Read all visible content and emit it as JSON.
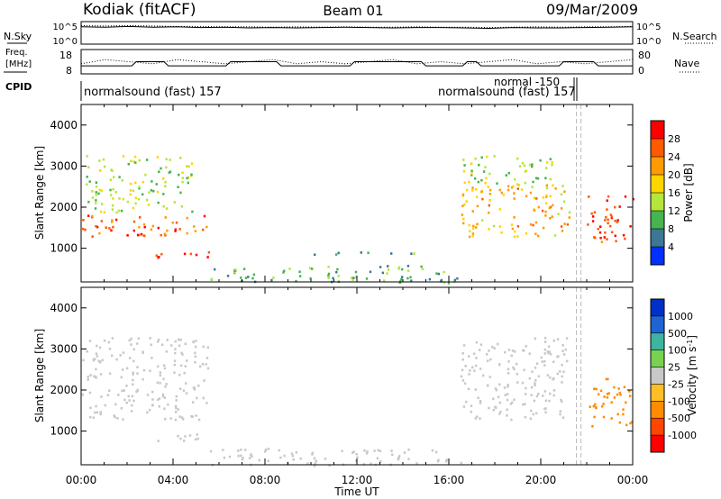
{
  "header": {
    "station": "Kodiak (fitACF)",
    "beam": "Beam 01",
    "date": "09/Mar/2009"
  },
  "strip_labels": {
    "nsky": "N.Sky",
    "nsearch": "N.Search",
    "freq_line1": "Freq.",
    "freq_line2": "[MHz]",
    "nave": "Nave",
    "cpid": "CPID"
  },
  "cpid_annotations": {
    "left": "normalsound (fast) 157",
    "right_upper": "normal -150",
    "right_lower": "normalsound (fast) 157"
  },
  "chart_data": [
    {
      "type": "line",
      "panel": "noise",
      "left_axis_ticks": [
        "10^5",
        "10^0"
      ],
      "right_axis_ticks": [
        "10^5",
        "10^0"
      ],
      "series": [
        {
          "name": "N.Sky",
          "style": "solid",
          "values": [
            4.1,
            4.0,
            4.2,
            4.0,
            4.1,
            3.9,
            4.0,
            3.8,
            3.9,
            3.8,
            3.9,
            4.0,
            3.9,
            3.8,
            3.9,
            3.9,
            3.8,
            3.7,
            3.9,
            3.8,
            3.8,
            3.9,
            4.0,
            4.1
          ]
        },
        {
          "name": "N.Search",
          "style": "dotted",
          "values": [
            4.4,
            4.3,
            4.4,
            4.3,
            4.2,
            4.2,
            4.1,
            4.1,
            4.0,
            4.1,
            4.0,
            4.1,
            4.0,
            4.0,
            4.1,
            4.0,
            4.0,
            3.9,
            4.0,
            4.1,
            4.0,
            4.1,
            4.1,
            4.2
          ]
        }
      ]
    },
    {
      "type": "line",
      "panel": "frequency",
      "left_axis_ticks": [
        "18",
        "8"
      ],
      "right_axis_ticks": [
        "80",
        "0"
      ],
      "series": [
        {
          "name": "Freq.",
          "style": "solid",
          "x_hours": [
            0,
            2.2,
            2.4,
            3.6,
            3.8,
            6.3,
            6.5,
            8.5,
            8.7,
            11.7,
            11.9,
            14.8,
            15.0,
            16.6,
            16.8,
            17.2,
            17.4,
            20.8,
            21.0,
            22.3,
            22.5,
            24
          ],
          "values": [
            11,
            11,
            13,
            13,
            11,
            11,
            13,
            13,
            11,
            11,
            13,
            13,
            11,
            11,
            13,
            13,
            11,
            11,
            13,
            13,
            11,
            11
          ]
        },
        {
          "name": "Nave",
          "style": "dotted",
          "values": [
            12,
            14,
            13,
            12,
            14,
            13,
            12,
            13,
            14,
            12,
            13,
            12,
            13,
            14,
            12,
            13,
            12,
            13,
            14,
            12,
            13,
            12,
            13,
            14
          ]
        }
      ]
    },
    {
      "type": "heatmap",
      "panel": "power",
      "xlabel": "",
      "ylabel": "Slant Range [km]",
      "x_range_hours": [
        0,
        24
      ],
      "y_range_km": [
        180,
        4500
      ],
      "yticks": [
        1000,
        2000,
        3000,
        4000
      ],
      "colorbar_label": "Power [dB]",
      "colorbar_ticks": [
        "28",
        "24",
        "20",
        "16",
        "12",
        "8",
        "4"
      ],
      "colorbar_colors": [
        "#ff0000",
        "#ff5a00",
        "#ff9b00",
        "#ffd400",
        "#b4e63c",
        "#46b450",
        "#3c7896",
        "#0030ff"
      ],
      "regions": [
        {
          "t0": 0.0,
          "t1": 5.5,
          "r0": 1300,
          "r1": 1850,
          "value": 22
        },
        {
          "t0": 0.2,
          "t1": 4.8,
          "r0": 1900,
          "r1": 3300,
          "value": 10
        },
        {
          "t0": 3.0,
          "t1": 5.6,
          "r0": 750,
          "r1": 950,
          "value": 25
        },
        {
          "t0": 5.6,
          "t1": 16.5,
          "r0": 180,
          "r1": 600,
          "value": 6
        },
        {
          "t0": 10.0,
          "t1": 14.5,
          "r0": 850,
          "r1": 950,
          "value": 6
        },
        {
          "t0": 16.5,
          "t1": 21.3,
          "r0": 1300,
          "r1": 2600,
          "value": 16
        },
        {
          "t0": 16.5,
          "t1": 20.5,
          "r0": 2600,
          "r1": 3300,
          "value": 10
        },
        {
          "t0": 22.0,
          "t1": 24.0,
          "r0": 1100,
          "r1": 2300,
          "value": 24
        }
      ]
    },
    {
      "type": "heatmap",
      "panel": "velocity",
      "xlabel": "Time UT",
      "ylabel": "Slant Range [km]",
      "x_range_hours": [
        0,
        24
      ],
      "y_range_km": [
        180,
        4500
      ],
      "xticks": [
        "00:00",
        "04:00",
        "08:00",
        "12:00",
        "16:00",
        "20:00",
        "00:00"
      ],
      "yticks": [
        1000,
        2000,
        3000,
        4000
      ],
      "colorbar_label": "Velocity [m s^-1]",
      "colorbar_ticks": [
        "1000",
        "500",
        "100",
        "25",
        "-25",
        "-100",
        "-500",
        "-1000"
      ],
      "colorbar_colors": [
        "#0030c8",
        "#1e64d2",
        "#3cb4a0",
        "#78d250",
        "#c8c8c8",
        "#ffbe28",
        "#ff8c00",
        "#ff4600",
        "#ff0000"
      ],
      "regions": [
        {
          "t0": 0.0,
          "t1": 5.5,
          "r0": 1300,
          "r1": 3300,
          "value": 0
        },
        {
          "t0": 3.0,
          "t1": 5.6,
          "r0": 750,
          "r1": 950,
          "value": 0
        },
        {
          "t0": 5.6,
          "t1": 16.5,
          "r0": 180,
          "r1": 600,
          "value": 20
        },
        {
          "t0": 16.5,
          "t1": 21.3,
          "r0": 1300,
          "r1": 3300,
          "value": 0
        },
        {
          "t0": 22.0,
          "t1": 24.0,
          "r0": 1100,
          "r1": 2300,
          "value": -300
        }
      ]
    }
  ]
}
